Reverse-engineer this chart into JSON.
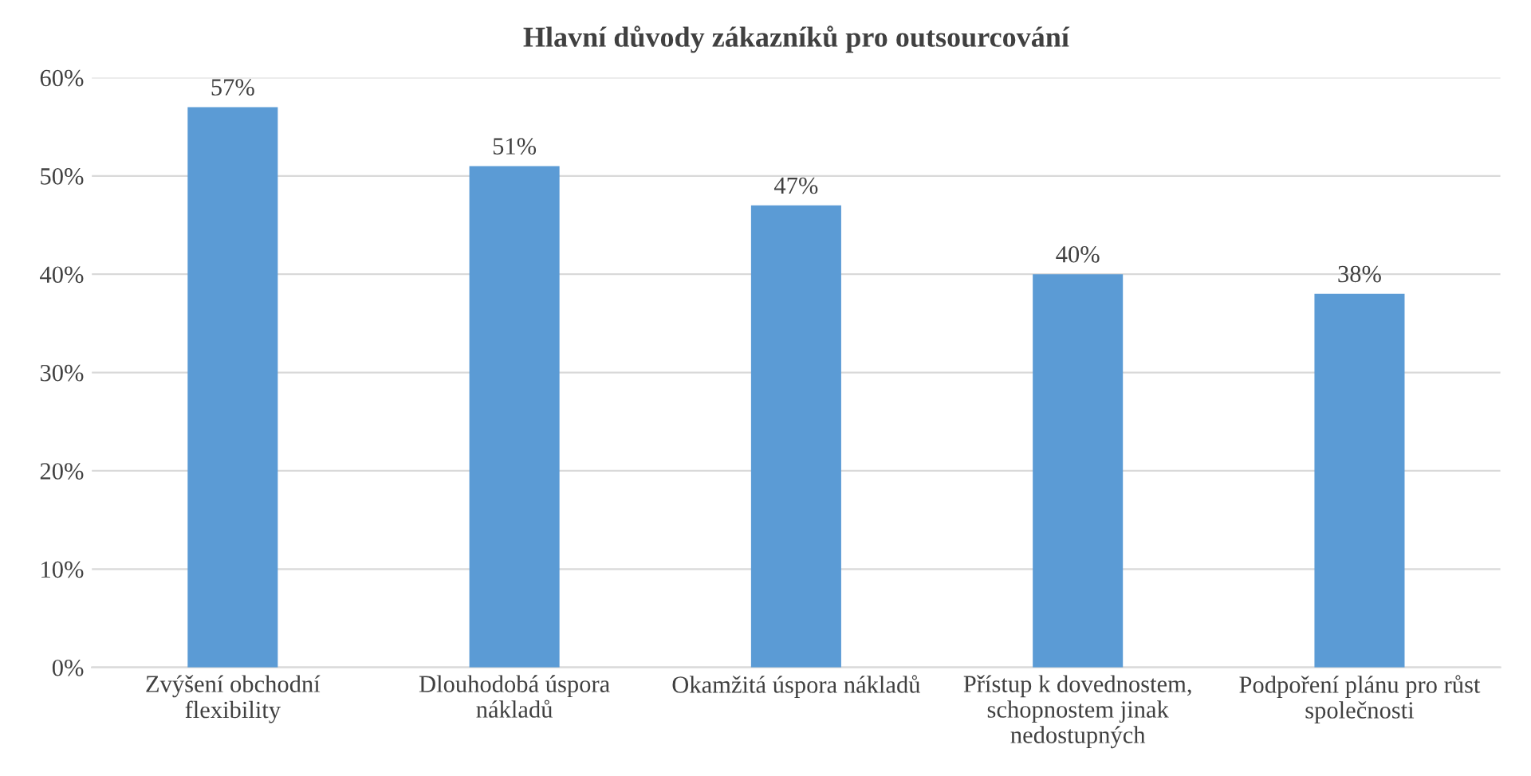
{
  "chart_data": {
    "type": "bar",
    "title": "Hlavní důvody zákazníků pro outsourcování",
    "categories": [
      "Zvýšení obchodní\nflexibility",
      "Dlouhodobá úspora\nnákladů",
      "Okamžitá úspora nákladů",
      "Přístup k dovednostem,\nschopnostem jinak\nnedostupných",
      "Podpoření plánu pro růst\nspolečnosti"
    ],
    "values": [
      57,
      51,
      47,
      40,
      38
    ],
    "value_labels": [
      "57%",
      "51%",
      "47%",
      "40%",
      "38%"
    ],
    "color": "#5b9bd5",
    "ylim": [
      0,
      60
    ],
    "yticks": [
      {
        "value": 0,
        "label": "0%"
      },
      {
        "value": 10,
        "label": "10%"
      },
      {
        "value": 20,
        "label": "20%"
      },
      {
        "value": 30,
        "label": "30%"
      },
      {
        "value": 40,
        "label": "40%"
      },
      {
        "value": 50,
        "label": "50%"
      },
      {
        "value": 60,
        "label": "60%"
      }
    ],
    "grid": "y",
    "legend": false
  }
}
